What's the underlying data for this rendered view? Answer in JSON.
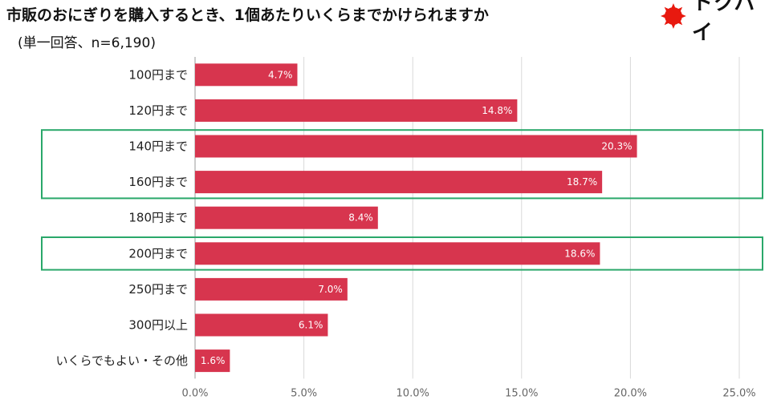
{
  "header": {
    "title": "市販のおにぎりを購入するとき、1個あたりいくらまでかけられますか",
    "subtitle": "(単一回答、n=6,190)"
  },
  "logo": {
    "text": "トクバイ",
    "icon": "red-sun-icon",
    "color": "#e8190f"
  },
  "chart_data": {
    "type": "bar",
    "orientation": "horizontal",
    "categories": [
      "100円まで",
      "120円まで",
      "140円まで",
      "160円まで",
      "180円まで",
      "200円まで",
      "250円まで",
      "300円以上",
      "いくらでもよい・その他"
    ],
    "values": [
      4.7,
      14.8,
      20.3,
      18.7,
      8.4,
      18.6,
      7.0,
      6.1,
      1.6
    ],
    "value_labels": [
      "4.7%",
      "14.8%",
      "20.3%",
      "18.7%",
      "8.4%",
      "18.6%",
      "7.0%",
      "6.1%",
      "1.6%"
    ],
    "xlim": [
      0,
      25
    ],
    "ticks": [
      0,
      5,
      10,
      15,
      20,
      25
    ],
    "tick_labels": [
      "0.0%",
      "5.0%",
      "10.0%",
      "15.0%",
      "20.0%",
      "25.0%"
    ],
    "grid": true,
    "bar_color": "#d7354e",
    "highlight_color": "#2aa86a",
    "highlight_groups": [
      [
        2,
        3
      ],
      [
        5
      ]
    ]
  }
}
